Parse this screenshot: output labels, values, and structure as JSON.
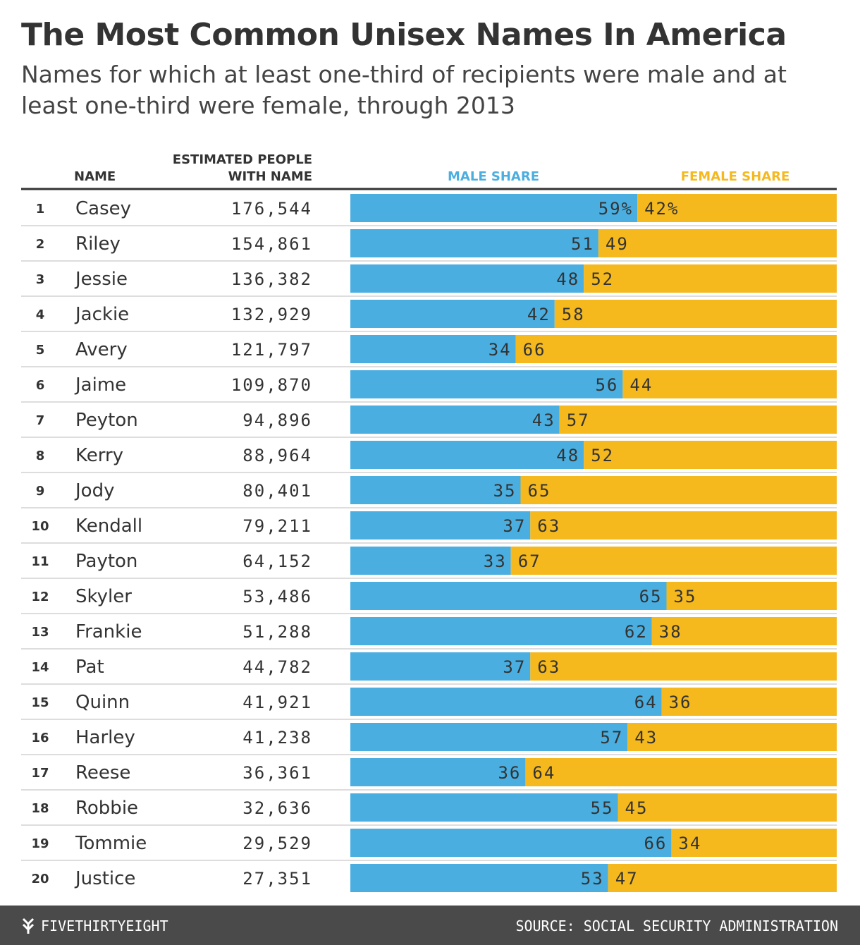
{
  "chart_data": {
    "type": "stacked-barh-table",
    "title": "The Most Common Unisex Names In America",
    "subtitle": "Names for which at least one-third of recipients were male and at least one-third were female, through 2013",
    "headers": {
      "name": "NAME",
      "people": "ESTIMATED PEOPLE WITH NAME"
    },
    "ranks": [
      1,
      2,
      3,
      4,
      5,
      6,
      7,
      8,
      9,
      10,
      11,
      12,
      13,
      14,
      15,
      16,
      17,
      18,
      19,
      20
    ],
    "categories": [
      "Casey",
      "Riley",
      "Jessie",
      "Jackie",
      "Avery",
      "Jaime",
      "Peyton",
      "Kerry",
      "Jody",
      "Kendall",
      "Payton",
      "Skyler",
      "Frankie",
      "Pat",
      "Quinn",
      "Harley",
      "Reese",
      "Robbie",
      "Tommie",
      "Justice"
    ],
    "people": {
      "values": [
        176544,
        154861,
        136382,
        132929,
        121797,
        109870,
        94896,
        88964,
        80401,
        79211,
        64152,
        53486,
        51288,
        44782,
        41921,
        41238,
        36361,
        32636,
        29529,
        27351
      ],
      "value_labels": [
        "176,544",
        "154,861",
        "136,382",
        "132,929",
        "121,797",
        "109,870",
        "94,896",
        "88,964",
        "80,401",
        "79,211",
        "64,152",
        "53,486",
        "51,288",
        "44,782",
        "41,921",
        "41,238",
        "36,361",
        "32,636",
        "29,529",
        "27,351"
      ]
    },
    "xlim": [
      0,
      100
    ],
    "series": [
      {
        "name": "MALE SHARE",
        "color": "#4aaee0",
        "values": [
          59,
          51,
          48,
          42,
          34,
          56,
          43,
          48,
          35,
          37,
          33,
          65,
          62,
          37,
          64,
          57,
          36,
          55,
          66,
          53
        ],
        "value_labels": [
          "59%",
          "51",
          "48",
          "42",
          "34",
          "56",
          "43",
          "48",
          "35",
          "37",
          "33",
          "65",
          "62",
          "37",
          "64",
          "57",
          "36",
          "55",
          "66",
          "53"
        ]
      },
      {
        "name": "FEMALE SHARE",
        "color": "#f5b91e",
        "values": [
          42,
          49,
          52,
          58,
          66,
          44,
          57,
          52,
          65,
          63,
          67,
          35,
          38,
          63,
          36,
          43,
          64,
          45,
          34,
          47
        ],
        "value_labels": [
          "42%",
          "49",
          "52",
          "58",
          "66",
          "44",
          "57",
          "52",
          "65",
          "63",
          "67",
          "35",
          "38",
          "63",
          "36",
          "43",
          "64",
          "45",
          "34",
          "47"
        ]
      }
    ],
    "footer": {
      "brand": "FIVETHIRTYEIGHT",
      "source": "SOURCE: SOCIAL SECURITY ADMINISTRATION"
    }
  }
}
